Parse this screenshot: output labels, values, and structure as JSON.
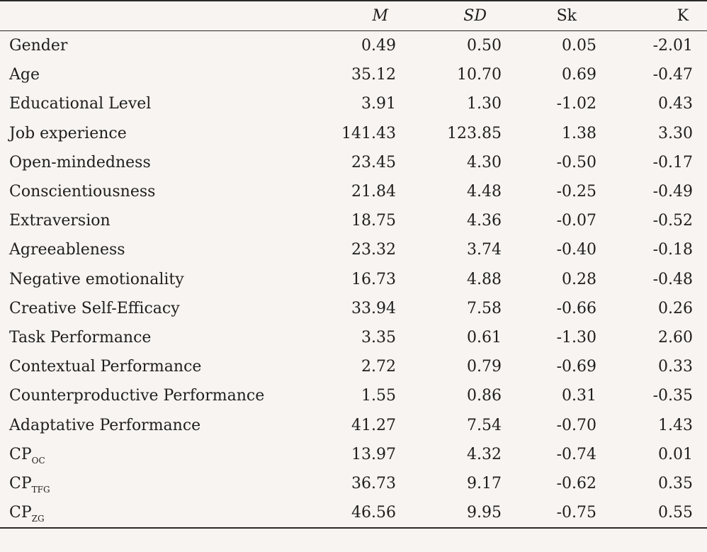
{
  "table": {
    "headers": {
      "label": "",
      "m": "M",
      "sd": "SD",
      "sk": "Sk",
      "k": "K"
    },
    "rows": [
      {
        "label": "Gender",
        "m": "0.49",
        "sd": "0.50",
        "sk": "0.05",
        "k": "-2.01"
      },
      {
        "label": "Age",
        "m": "35.12",
        "sd": "10.70",
        "sk": "0.69",
        "k": "-0.47"
      },
      {
        "label": "Educational Level",
        "m": "3.91",
        "sd": "1.30",
        "sk": "-1.02",
        "k": "0.43"
      },
      {
        "label": "Job experience",
        "m": "141.43",
        "sd": "123.85",
        "sk": "1.38",
        "k": "3.30"
      },
      {
        "label": "Open-mindedness",
        "m": "23.45",
        "sd": "4.30",
        "sk": "-0.50",
        "k": "-0.17"
      },
      {
        "label": "Conscientiousness",
        "m": "21.84",
        "sd": "4.48",
        "sk": "-0.25",
        "k": "-0.49"
      },
      {
        "label": "Extraversion",
        "m": "18.75",
        "sd": "4.36",
        "sk": "-0.07",
        "k": "-0.52"
      },
      {
        "label": "Agreeableness",
        "m": "23.32",
        "sd": "3.74",
        "sk": "-0.40",
        "k": "-0.18"
      },
      {
        "label": "Negative emotionality",
        "m": "16.73",
        "sd": "4.88",
        "sk": "0.28",
        "k": "-0.48"
      },
      {
        "label": "Creative Self-Efficacy",
        "m": "33.94",
        "sd": "7.58",
        "sk": "-0.66",
        "k": "0.26"
      },
      {
        "label": "Task Performance",
        "m": "3.35",
        "sd": "0.61",
        "sk": "-1.30",
        "k": "2.60"
      },
      {
        "label": "Contextual Performance",
        "m": "2.72",
        "sd": "0.79",
        "sk": "-0.69",
        "k": "0.33"
      },
      {
        "label": "Counterproductive Performance",
        "m": "1.55",
        "sd": "0.86",
        "sk": "0.31",
        "k": "-0.35"
      },
      {
        "label": "Adaptative Performance",
        "m": "41.27",
        "sd": "7.54",
        "sk": "-0.70",
        "k": "1.43"
      }
    ],
    "cp_rows": [
      {
        "label_main": "CP",
        "label_sub": "OC",
        "m": "13.97",
        "sd": "4.32",
        "sk": "-0.74",
        "k": "0.01"
      },
      {
        "label_main": "CP",
        "label_sub": "TFG",
        "m": "36.73",
        "sd": "9.17",
        "sk": "-0.62",
        "k": "0.35"
      },
      {
        "label_main": "CP",
        "label_sub": "ZG",
        "m": "46.56",
        "sd": "9.95",
        "sk": "-0.75",
        "k": "0.55"
      }
    ]
  }
}
